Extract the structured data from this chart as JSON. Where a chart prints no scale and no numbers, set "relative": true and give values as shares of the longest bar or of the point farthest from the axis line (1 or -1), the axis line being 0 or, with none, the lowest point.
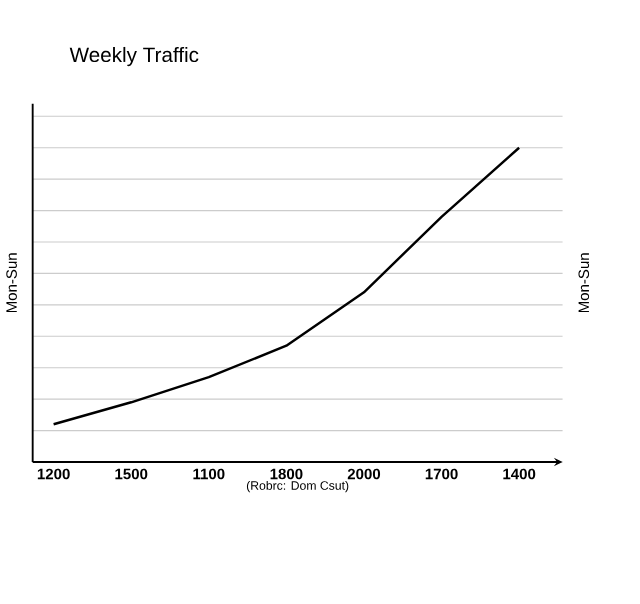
{
  "chart_data": {
    "type": "line",
    "title": "Weekly Traffic",
    "xlabel": "(Robrc: Dom Csut)",
    "ylabel": "Mon-Sun",
    "y2label": "Mon-Sun",
    "categories": [
      "1200",
      "1500",
      "1100",
      "1800",
      "2000",
      "1700",
      "1400"
    ],
    "series": [
      {
        "color": "#000000",
        "values": [
          0.12,
          0.19,
          0.27,
          0.37,
          0.54,
          0.78,
          1.0
        ]
      }
    ],
    "relative": true,
    "grid": "y",
    "marker": "none",
    "line_style": "solid"
  }
}
